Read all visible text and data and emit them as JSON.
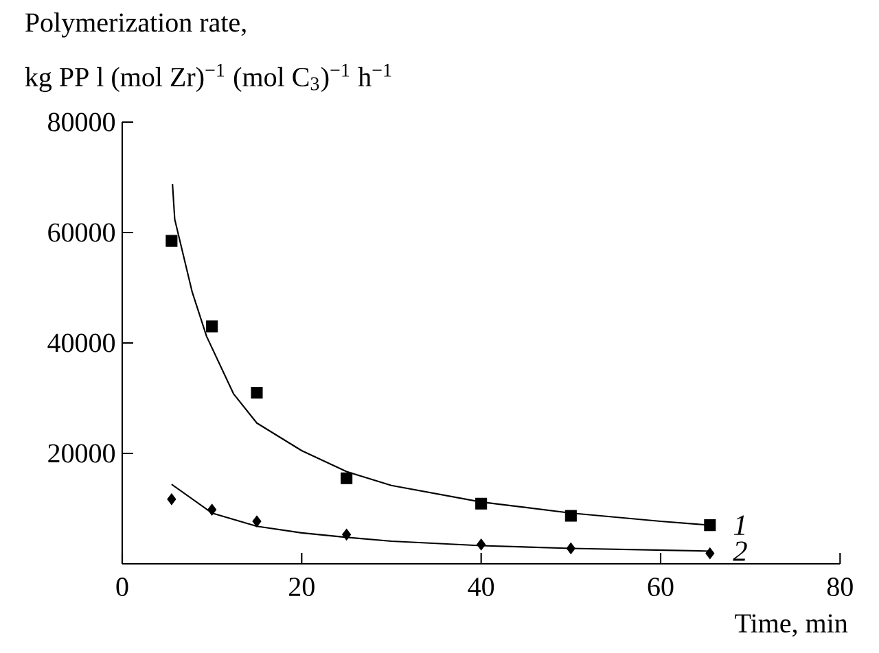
{
  "chart_data": {
    "type": "scatter",
    "title": "Polymerization rate,",
    "ylabel": "kg PP l (mol Zr)$^{−1}$ (mol C$_{3}$)$^{−1}$ h$^{−1}$",
    "xlabel": "Time, min",
    "xlim": [
      0,
      80
    ],
    "xticks": [
      0,
      20,
      40,
      60,
      80
    ],
    "ylim": [
      0,
      80000
    ],
    "yticks": [
      20000,
      40000,
      60000,
      80000
    ],
    "series": [
      {
        "marker": "square",
        "color": "#000000",
        "x": [
          5.5,
          10,
          15,
          25,
          40,
          50,
          65.5
        ],
        "values": [
          58500,
          43000,
          31000,
          15500,
          10900,
          8700,
          7000
        ]
      },
      {
        "marker": "diamond",
        "color": "#000000",
        "x": [
          5.5,
          10,
          15,
          25,
          40,
          50,
          65.5
        ],
        "values": [
          11700,
          9800,
          7700,
          5300,
          3500,
          2800,
          1900
        ]
      },
      {
        "type": "line",
        "name": "1",
        "marker": "none",
        "line_style": "solid",
        "color": "#000000",
        "x": [
          5.6,
          5.85,
          7.8,
          9.4,
          12.4,
          15,
          20,
          25,
          30,
          40,
          50,
          60,
          65.5
        ],
        "values": [
          68800,
          62400,
          49200,
          41200,
          30800,
          25500,
          20500,
          16700,
          14200,
          11200,
          9200,
          7700,
          7000
        ]
      },
      {
        "type": "line",
        "name": "2",
        "marker": "none",
        "line_style": "solid",
        "color": "#000000",
        "x": [
          5.5,
          10,
          15,
          20,
          25,
          30,
          40,
          50,
          65.5
        ],
        "values": [
          14400,
          9200,
          6800,
          5600,
          4800,
          4100,
          3300,
          2800,
          2300
        ]
      }
    ],
    "grid": false
  }
}
